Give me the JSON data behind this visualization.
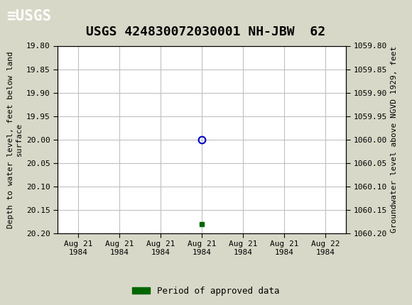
{
  "title": "USGS 424830072030001 NH-JBW  62",
  "header_color": "#1a6b3c",
  "bg_color": "#d8d8c8",
  "plot_bg_color": "#ffffff",
  "ylabel_left": "Depth to water level, feet below land\nsurface",
  "ylabel_right": "Groundwater level above NGVD 1929, feet",
  "ylim_left": [
    19.8,
    20.2
  ],
  "ylim_right": [
    1059.8,
    1060.2
  ],
  "yticks_left": [
    19.8,
    19.85,
    19.9,
    19.95,
    20.0,
    20.05,
    20.1,
    20.15,
    20.2
  ],
  "yticks_right": [
    1059.8,
    1059.85,
    1059.9,
    1059.95,
    1060.0,
    1060.05,
    1060.1,
    1060.15,
    1060.2
  ],
  "data_point_x": 3.0,
  "data_point_y": 20.0,
  "data_point_color": "#0000cc",
  "small_rect_x": 3.0,
  "small_rect_y": 20.18,
  "small_rect_color": "#006600",
  "grid_color": "#c0c0c0",
  "font_family": "monospace",
  "title_fontsize": 13,
  "axis_label_fontsize": 8,
  "tick_fontsize": 8,
  "legend_label": "Period of approved data",
  "legend_color": "#006600",
  "xtick_labels": [
    "Aug 21\n1984",
    "Aug 21\n1984",
    "Aug 21\n1984",
    "Aug 21\n1984",
    "Aug 21\n1984",
    "Aug 21\n1984",
    "Aug 22\n1984"
  ],
  "xtick_positions": [
    0,
    1,
    2,
    3,
    4,
    5,
    6
  ],
  "xlim": [
    -0.5,
    6.5
  ]
}
